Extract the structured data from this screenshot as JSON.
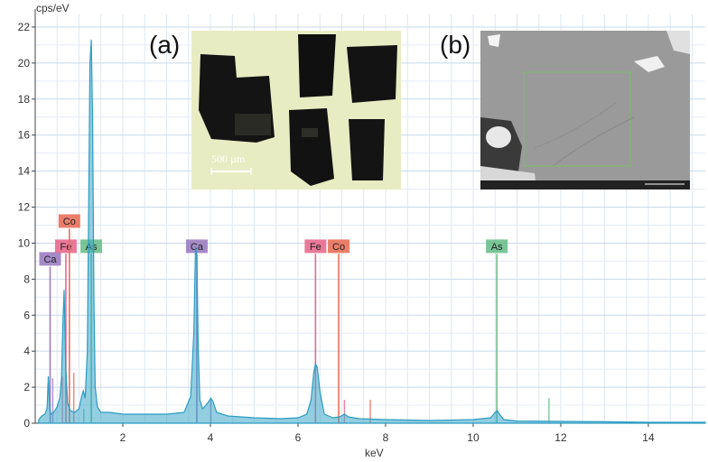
{
  "chart_data": {
    "type": "line",
    "title": "",
    "xlabel": "keV",
    "ylabel": "cps/eV",
    "xlim": [
      0,
      15.3
    ],
    "ylim": [
      0,
      22.7
    ],
    "xticks": [
      2,
      4,
      6,
      8,
      10,
      12,
      14
    ],
    "yticks": [
      0,
      2,
      4,
      6,
      8,
      10,
      12,
      14,
      16,
      18,
      20,
      22
    ],
    "grid": true,
    "series": [
      {
        "color": "#3aa6c8",
        "x": [
          0.08,
          0.15,
          0.22,
          0.27,
          0.3,
          0.33,
          0.36,
          0.42,
          0.5,
          0.56,
          0.6,
          0.63,
          0.66,
          0.7,
          0.74,
          0.8,
          0.9,
          1.0,
          1.06,
          1.1,
          1.14,
          1.19,
          1.22,
          1.25,
          1.28,
          1.31,
          1.34,
          1.37,
          1.42,
          1.5,
          1.7,
          2.0,
          2.5,
          3.0,
          3.4,
          3.55,
          3.62,
          3.66,
          3.69,
          3.72,
          3.76,
          3.82,
          3.9,
          3.96,
          4.01,
          4.06,
          4.14,
          4.4,
          5.0,
          5.6,
          6.0,
          6.2,
          6.3,
          6.36,
          6.4,
          6.44,
          6.5,
          6.6,
          6.8,
          6.95,
          7.06,
          7.15,
          7.4,
          8.0,
          9.0,
          10.0,
          10.4,
          10.5,
          10.55,
          10.6,
          10.7,
          11.0,
          12.0,
          13.0,
          14.0,
          15.0,
          15.3
        ],
        "y": [
          0.2,
          0.4,
          0.5,
          0.8,
          2.6,
          0.8,
          0.5,
          0.6,
          0.9,
          1.4,
          2.5,
          5.5,
          7.4,
          3.0,
          1.1,
          0.7,
          0.6,
          0.8,
          1.5,
          1.8,
          1.4,
          4.0,
          12.0,
          20.0,
          21.3,
          17.0,
          7.0,
          2.0,
          0.9,
          0.6,
          0.6,
          0.5,
          0.5,
          0.5,
          0.6,
          1.5,
          5.0,
          9.8,
          9.3,
          4.5,
          1.3,
          0.8,
          1.0,
          1.2,
          1.4,
          1.2,
          0.6,
          0.4,
          0.3,
          0.25,
          0.3,
          0.5,
          1.3,
          2.8,
          3.3,
          3.1,
          1.8,
          0.5,
          0.3,
          0.35,
          0.5,
          0.35,
          0.25,
          0.2,
          0.15,
          0.2,
          0.3,
          0.6,
          0.7,
          0.5,
          0.2,
          0.12,
          0.1,
          0.08,
          0.05,
          0.05,
          0.05
        ]
      }
    ],
    "markers": [
      {
        "label": "Ca",
        "energy": 0.34,
        "height": 8.7,
        "color": "#9b7dc1"
      },
      {
        "label": "Fe",
        "energy": 0.7,
        "height": 9.4,
        "color": "#e86a8e"
      },
      {
        "label": "Co",
        "energy": 0.78,
        "height": 10.8,
        "color": "#e8705a"
      },
      {
        "label": "As",
        "energy": 1.28,
        "height": 9.4,
        "color": "#6cbf8c"
      },
      {
        "label": "Ca",
        "energy": 3.69,
        "height": 9.4,
        "color": "#9b7dc1"
      },
      {
        "label": "Fe",
        "energy": 6.4,
        "height": 9.4,
        "color": "#e86a8e"
      },
      {
        "label": "Co",
        "energy": 6.93,
        "height": 9.4,
        "color": "#e8705a"
      },
      {
        "label": "As",
        "energy": 10.54,
        "height": 9.4,
        "color": "#6cbf8c"
      }
    ],
    "minor_lines": [
      {
        "energy": 0.4,
        "height": 2.5,
        "color": "#9b7dc1"
      },
      {
        "energy": 0.62,
        "height": 2.6,
        "color": "#e86a8e"
      },
      {
        "energy": 0.88,
        "height": 2.8,
        "color": "#e8705a"
      },
      {
        "energy": 1.11,
        "height": 0.8,
        "color": "#6cbf8c"
      },
      {
        "energy": 4.01,
        "height": 1.3,
        "color": "#9b7dc1"
      },
      {
        "energy": 7.06,
        "height": 1.3,
        "color": "#e86a8e"
      },
      {
        "energy": 7.65,
        "height": 1.3,
        "color": "#e8705a"
      },
      {
        "energy": 11.73,
        "height": 1.4,
        "color": "#6cbf8c"
      }
    ]
  },
  "insets": {
    "a": {
      "label": "(a)",
      "scale_bar": "500 µm"
    },
    "b": {
      "label": "(b)"
    }
  }
}
